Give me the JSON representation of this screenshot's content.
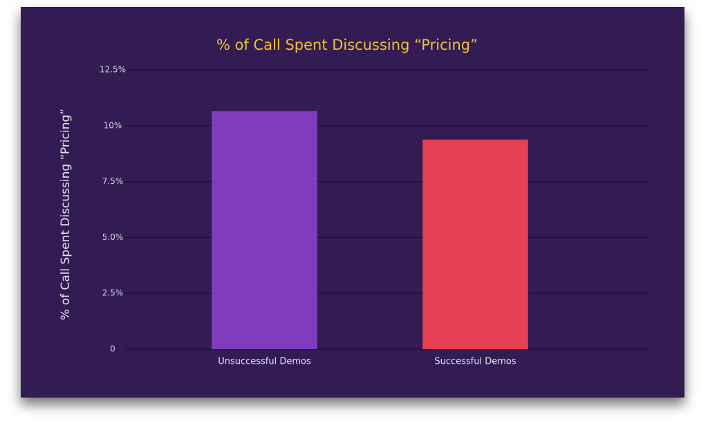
{
  "chart_data": {
    "type": "bar",
    "title": "% of Call Spent Discussing “Pricing”",
    "y_label": "% of Call Spent Discussing “Pricing”",
    "categories": [
      "Unsuccessful Demos",
      "Successful Demos"
    ],
    "values": [
      10.65,
      9.38
    ],
    "colors": [
      "#7f3dbd",
      "#e63e52"
    ],
    "ylim": [
      0,
      12.5
    ],
    "yticks": [
      0,
      {
        "value": 2.5,
        "label": "2.5%"
      },
      {
        "value": 5,
        "label": "5.0%"
      },
      {
        "value": 7.5,
        "label": "7.5%"
      },
      {
        "value": 10,
        "label": "10%"
      },
      {
        "value": 12.5,
        "label": "12.5%"
      }
    ],
    "grid": true
  }
}
